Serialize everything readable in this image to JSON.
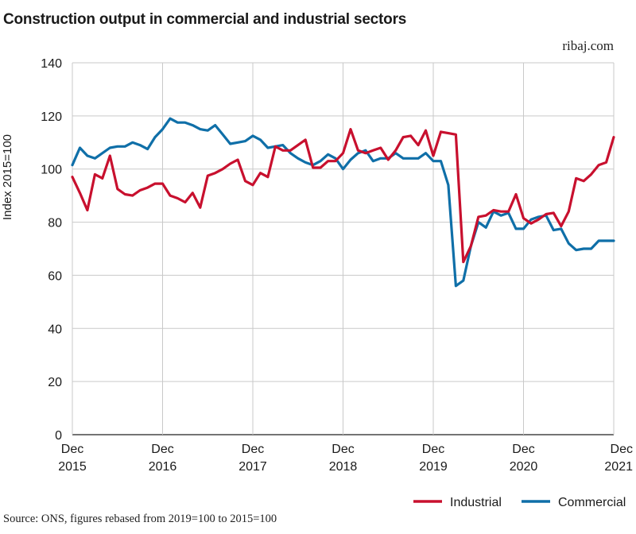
{
  "chart_data": {
    "type": "line",
    "title": "Construction output in commercial and industrial sectors",
    "brand": "ribaj.com",
    "source": "Source: ONS, figures rebased from 2019=100 to 2015=100",
    "ylabel": "Index 2015=100",
    "ylim": [
      0,
      140
    ],
    "yticks": [
      0,
      20,
      40,
      60,
      80,
      100,
      120,
      140
    ],
    "xlim": [
      0,
      72
    ],
    "xticks": [
      {
        "pos": 0,
        "line1": "Dec",
        "line2": "2015"
      },
      {
        "pos": 12,
        "line1": "Dec",
        "line2": "2016"
      },
      {
        "pos": 24,
        "line1": "Dec",
        "line2": "2017"
      },
      {
        "pos": 36,
        "line1": "Dec",
        "line2": "2018"
      },
      {
        "pos": 48,
        "line1": "Dec",
        "line2": "2019"
      },
      {
        "pos": 60,
        "line1": "Dec",
        "line2": "2020"
      },
      {
        "pos": 72,
        "line1": "Dec",
        "line2": "2021"
      }
    ],
    "grid": true,
    "legend_position": "bottom-right",
    "series": [
      {
        "name": "Industrial",
        "color": "#c8102e",
        "values": [
          97,
          91,
          84.5,
          98,
          96.5,
          105,
          92.5,
          90.5,
          90,
          92,
          93,
          94.5,
          94.5,
          90,
          89,
          87.5,
          91,
          85.5,
          97.5,
          98.5,
          100,
          102,
          103.5,
          95.5,
          94,
          98.5,
          97,
          108.5,
          107,
          107,
          109,
          111,
          100.5,
          100.5,
          103,
          103,
          106,
          115,
          107,
          106,
          107,
          108,
          103.5,
          107,
          112,
          112.5,
          109,
          114.5,
          105,
          114,
          113.5,
          113,
          65,
          71,
          82,
          82.5,
          84.5,
          84,
          84,
          90.5,
          81.5,
          79.5,
          81,
          83,
          83.5,
          78.5,
          84,
          96.5,
          95.5,
          98,
          101.5,
          102.5,
          112
        ]
      },
      {
        "name": "Commercial",
        "color": "#0f6fa8",
        "values": [
          101.5,
          108,
          105,
          104,
          106,
          108,
          108.5,
          108.5,
          110,
          109,
          107.5,
          112,
          115,
          119,
          117.5,
          117.5,
          116.5,
          115,
          114.5,
          116.5,
          113,
          109.5,
          110,
          110.5,
          112.5,
          111,
          108,
          108.5,
          109,
          106,
          104,
          102.5,
          101.5,
          103,
          105.5,
          104,
          100,
          103.5,
          106,
          107,
          103,
          104,
          104,
          106,
          104,
          104,
          104,
          106,
          103,
          103,
          94,
          56,
          58,
          71,
          80,
          78,
          84,
          82.5,
          83.5,
          77.5,
          77.5,
          81,
          82,
          82.5,
          77,
          77.5,
          72,
          69.5,
          70,
          70,
          73,
          73,
          73
        ]
      }
    ]
  }
}
